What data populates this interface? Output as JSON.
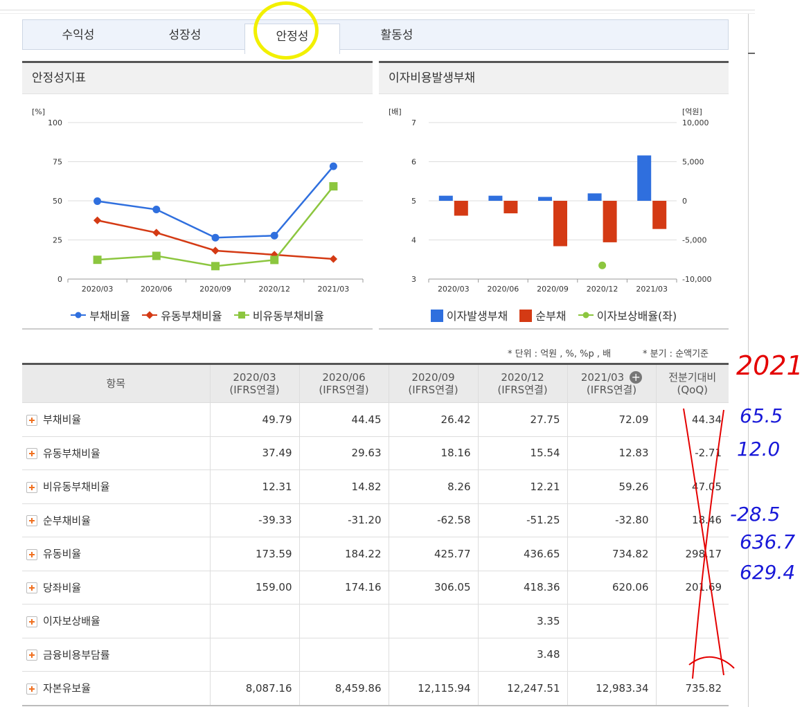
{
  "tabs": [
    "수익성",
    "성장성",
    "안정성",
    "활동성"
  ],
  "left_panel": {
    "title": "안정성지표",
    "legend": [
      "부채비율",
      "유동부채비율",
      "비유동부채비율"
    ]
  },
  "right_panel": {
    "title": "이자비용발생부채",
    "legend": [
      "이자발생부채",
      "순부채",
      "이자보상배율(좌)"
    ]
  },
  "chart_data": [
    {
      "type": "line",
      "title": "안정성지표",
      "ylabel": "[%]",
      "categories": [
        "2020/03",
        "2020/06",
        "2020/09",
        "2020/12",
        "2021/03"
      ],
      "ylim": [
        0,
        100
      ],
      "yticks": [
        "100",
        "75",
        "50",
        "25",
        "0"
      ],
      "series": [
        {
          "name": "부채비율",
          "values": [
            49.79,
            44.45,
            26.42,
            27.75,
            72.09
          ],
          "color": "#2f6fde"
        },
        {
          "name": "유동부채비율",
          "values": [
            37.49,
            29.63,
            18.16,
            15.54,
            12.83
          ],
          "color": "#d43a14"
        },
        {
          "name": "비유동부채비율",
          "values": [
            12.31,
            14.82,
            8.26,
            12.21,
            59.26
          ],
          "color": "#8cc63f"
        }
      ],
      "legend_position": "bottom"
    },
    {
      "type": "bar",
      "title": "이자비용발생부채",
      "ylabel_left": "[배]",
      "ylabel_right": "[억원]",
      "categories": [
        "2020/03",
        "2020/06",
        "2020/09",
        "2020/12",
        "2021/03"
      ],
      "ylim_left": [
        3,
        7
      ],
      "ylim_right": [
        -10000,
        10000
      ],
      "yticks_left": [
        "7",
        "6",
        "5",
        "4",
        "3"
      ],
      "yticks_right": [
        "10,000",
        "5,000",
        "0",
        "-5,000",
        "-10,000"
      ],
      "series": [
        {
          "name": "이자발생부채",
          "axis": "right",
          "values": [
            650,
            650,
            500,
            950,
            5800
          ],
          "color": "#2f6fde"
        },
        {
          "name": "순부채",
          "axis": "right",
          "values": [
            -1900,
            -1600,
            -5800,
            -5300,
            -3600
          ],
          "color": "#d43a14"
        },
        {
          "name": "이자보상배율(좌)",
          "axis": "left",
          "type": "scatter",
          "values": [
            null,
            null,
            null,
            3.35,
            null
          ],
          "color": "#8cc63f"
        }
      ],
      "legend_position": "bottom"
    }
  ],
  "notes": {
    "unit": "* 단위 : 억원 , %, %p , 배",
    "quarter": "* 분기 : 순액기준"
  },
  "table": {
    "header_item": "항목",
    "columns": [
      {
        "period": "2020/03",
        "basis": "(IFRS연결)"
      },
      {
        "period": "2020/06",
        "basis": "(IFRS연결)"
      },
      {
        "period": "2020/09",
        "basis": "(IFRS연결)"
      },
      {
        "period": "2020/12",
        "basis": "(IFRS연결)"
      },
      {
        "period": "2021/03",
        "basis": "(IFRS연결)"
      }
    ],
    "last_col": {
      "title": "전분기대비",
      "sub": "(QoQ)"
    },
    "rows": [
      {
        "label": "부채비율",
        "values": [
          "49.79",
          "44.45",
          "26.42",
          "27.75",
          "72.09",
          "44.34"
        ],
        "neg": false
      },
      {
        "label": "유동부채비율",
        "values": [
          "37.49",
          "29.63",
          "18.16",
          "15.54",
          "12.83",
          "-2.71"
        ],
        "neg": false
      },
      {
        "label": "비유동부채비율",
        "values": [
          "12.31",
          "14.82",
          "8.26",
          "12.21",
          "59.26",
          "47.05"
        ],
        "neg": false
      },
      {
        "label": "순부채비율",
        "values": [
          "-39.33",
          "-31.20",
          "-62.58",
          "-51.25",
          "-32.80",
          "18.46"
        ],
        "neg": true
      },
      {
        "label": "유동비율",
        "values": [
          "173.59",
          "184.22",
          "425.77",
          "436.65",
          "734.82",
          "298.17"
        ],
        "neg": false
      },
      {
        "label": "당좌비율",
        "values": [
          "159.00",
          "174.16",
          "306.05",
          "418.36",
          "620.06",
          "201.69"
        ],
        "neg": false
      },
      {
        "label": "이자보상배율",
        "values": [
          "",
          "",
          "",
          "3.35",
          "",
          ""
        ],
        "neg": false
      },
      {
        "label": "금융비용부담률",
        "values": [
          "",
          "",
          "",
          "3.48",
          "",
          ""
        ],
        "neg": false
      },
      {
        "label": "자본유보율",
        "values": [
          "8,087.16",
          "8,459.86",
          "12,115.94",
          "12,247.51",
          "12,983.34",
          "735.82"
        ],
        "neg": false
      }
    ]
  },
  "handwritten": {
    "year": "2021",
    "notes": [
      "65.5",
      "12.0",
      "-28.5",
      "636.7",
      "629.4"
    ]
  }
}
